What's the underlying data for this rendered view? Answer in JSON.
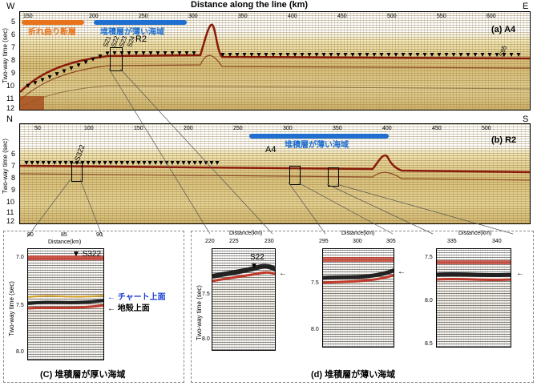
{
  "top": {
    "x_title": "Distance along the line (km)",
    "left_letter": "W",
    "right_letter": "E",
    "x_ticks": [
      "150",
      "200",
      "250",
      "300",
      "350",
      "400",
      "450",
      "500",
      "550",
      "600"
    ],
    "panel_label": "(a) A4",
    "orange_label": "折れ曲り断層",
    "blue_label": "堆積層が薄い海域",
    "stations": [
      "S21",
      "S22",
      "S23",
      "S24"
    ],
    "station_right": "S85",
    "cross_label": "R2",
    "ylabel": "Two-way time (sec)",
    "y_ticks": [
      "5",
      "6",
      "7",
      "8",
      "9",
      "10",
      "11",
      "12"
    ]
  },
  "mid": {
    "left_letter": "N",
    "right_letter": "S",
    "x_ticks": [
      "50",
      "100",
      "150",
      "200",
      "250",
      "300",
      "350",
      "400",
      "450",
      "500"
    ],
    "panel_label": "(b) R2",
    "blue_label": "堆積層が薄い海域",
    "station": "S322",
    "cross_label": "A4",
    "ylabel": "Two-way time (sec)",
    "y_ticks": [
      "6",
      "7",
      "8",
      "9",
      "10",
      "11",
      "12"
    ]
  },
  "zoom_c": {
    "x_ticks": [
      "80",
      "85",
      "90"
    ],
    "x_title": "Distance(km)",
    "ylabel": "Two-way time (sec)",
    "y_ticks": [
      "7.0",
      "7.5",
      "8.0"
    ],
    "station": "S322",
    "label_blue": "チャート上面",
    "label_black": "地殻上面",
    "caption": "(C) 堆積層が厚い海域"
  },
  "zoom_d": {
    "p1": {
      "x_ticks": [
        "220",
        "225",
        "230"
      ],
      "x_title": "Distance(km)",
      "y_ticks": [
        "7.5",
        "8.0"
      ],
      "station": "S22"
    },
    "p2": {
      "x_ticks": [
        "295",
        "300",
        "305"
      ],
      "x_title": "Distance(km)",
      "y_ticks": [
        "7.5",
        "8.0"
      ]
    },
    "p3": {
      "x_ticks": [
        "335",
        "340"
      ],
      "x_title": "Distance(km)",
      "y_ticks": [
        "7.5",
        "8.0",
        "8.5"
      ]
    },
    "ylabel": "Two-way time (sec)",
    "caption": "(d) 堆積層が薄い海域"
  },
  "colors": {
    "orange": "#e8731a",
    "blue": "#1e6fd0",
    "arrow_blue": "#1a3fd0"
  }
}
